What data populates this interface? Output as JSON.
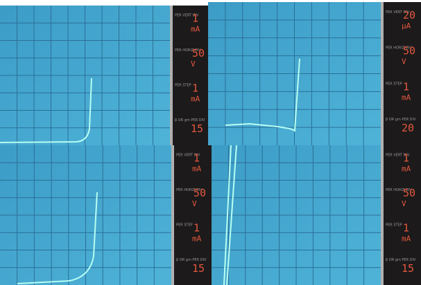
{
  "labels": [
    "PER VERT DIV",
    "PER HORIZ DIV",
    "PER STEP",
    "β OR gm PER DIV"
  ],
  "panels": [
    {
      "vert": {
        "value": "1",
        "unit": "mA"
      },
      "horiz": {
        "value": "50",
        "unit": "V"
      },
      "step": {
        "value": "1",
        "unit": "mA"
      },
      "beta": "15"
    },
    {
      "vert": {
        "value": "20",
        "unit": "µA"
      },
      "horiz": {
        "value": "50",
        "unit": "V"
      },
      "step": {
        "value": "1",
        "unit": "mA"
      },
      "beta": "20"
    },
    {
      "vert": {
        "value": "1",
        "unit": "mA"
      },
      "horiz": {
        "value": "50",
        "unit": "V"
      },
      "step": {
        "value": "1",
        "unit": "mA"
      },
      "beta": "15"
    },
    {
      "vert": {
        "value": "1",
        "unit": "mA"
      },
      "horiz": {
        "value": "50",
        "unit": "V"
      },
      "step": {
        "value": "1",
        "unit": "mA"
      },
      "beta": "15"
    }
  ]
}
